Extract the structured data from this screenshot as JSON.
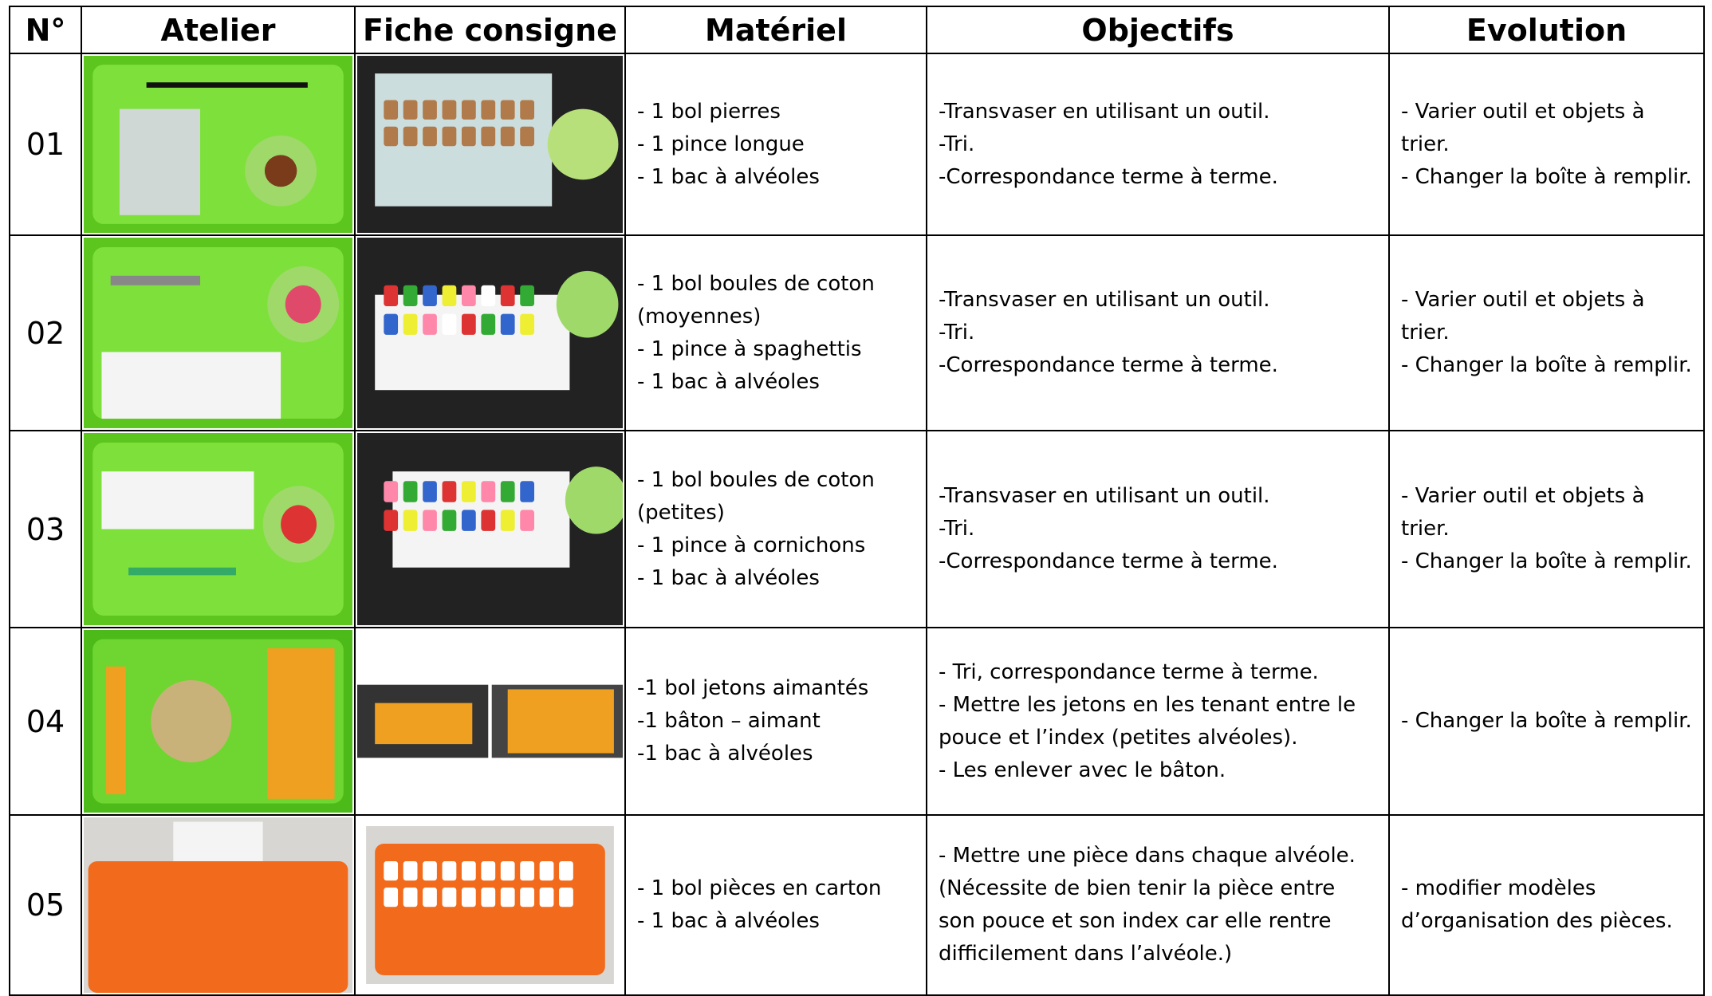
{
  "header": {
    "columns": [
      "N°",
      "Atelier",
      "Fiche consigne",
      "Matériel",
      "Objectifs",
      "Evolution"
    ]
  },
  "rows": [
    {
      "number": "01",
      "materiel": [
        "- 1 bol pierres",
        "- 1 pince longue",
        "- 1 bac à alvéoles"
      ],
      "objectifs": [
        "-Transvaser en utilisant un outil.",
        "-Tri.",
        "-Correspondance terme à terme."
      ],
      "evolution": [
        "- Varier outil et objets à trier.",
        "- Changer la boîte à remplir."
      ]
    },
    {
      "number": "02",
      "materiel": [
        "- 1 bol boules de coton (moyennes)",
        "- 1 pince à spaghettis",
        "- 1 bac à alvéoles"
      ],
      "objectifs": [
        "-Transvaser en utilisant un outil.",
        "-Tri.",
        "-Correspondance terme à terme."
      ],
      "evolution": [
        "- Varier outil et objets à trier.",
        "- Changer la boîte à remplir."
      ]
    },
    {
      "number": "03",
      "materiel": [
        "- 1 bol boules de coton (petites)",
        "- 1 pince à cornichons",
        "- 1 bac à alvéoles"
      ],
      "objectifs": [
        "-Transvaser en utilisant un outil.",
        "-Tri.",
        "-Correspondance terme à terme."
      ],
      "evolution": [
        "- Varier outil et objets à trier.",
        "- Changer la boîte à remplir."
      ]
    },
    {
      "number": "04",
      "materiel": [
        "-1 bol jetons aimantés",
        "-1 bâton – aimant",
        "-1 bac à alvéoles"
      ],
      "objectifs": [
        "- Tri, correspondance terme à terme.",
        "- Mettre les jetons en les tenant entre le pouce et l’index (petites alvéoles).",
        "- Les enlever avec le bâton."
      ],
      "evolution": [
        "- Changer la boîte à remplir."
      ]
    },
    {
      "number": "05",
      "materiel": [
        "- 1 bol pièces en carton",
        "- 1 bac à alvéoles"
      ],
      "objectifs": [
        "- Mettre une pièce dans chaque alvéole.",
        "(Nécessite de bien tenir la pièce entre son pouce et son index car elle rentre difficilement dans l’alvéole.)"
      ],
      "evolution": [
        "- modifier modèles d’organisation des pièces."
      ]
    }
  ]
}
